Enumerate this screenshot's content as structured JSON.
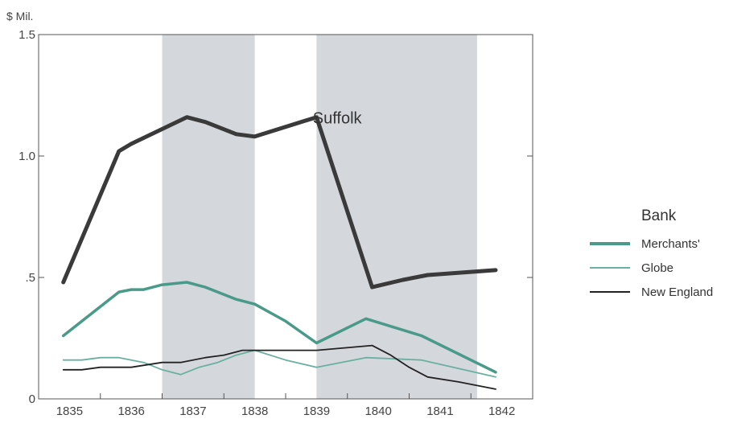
{
  "chart_data": {
    "type": "line",
    "title": "",
    "unit_label": "$ Mil.",
    "ylabel": "",
    "xlabel": "",
    "ylim": [
      0,
      1.5
    ],
    "xlim": [
      1835,
      1843
    ],
    "y_ticks": [
      {
        "value": 0,
        "label": "0"
      },
      {
        "value": 0.5,
        "label": ".5"
      },
      {
        "value": 1.0,
        "label": "1.0"
      },
      {
        "value": 1.5,
        "label": "1.5"
      }
    ],
    "x_ticks": [
      {
        "value": 1835,
        "label": "1835"
      },
      {
        "value": 1836,
        "label": "1836"
      },
      {
        "value": 1837,
        "label": "1837"
      },
      {
        "value": 1838,
        "label": "1838"
      },
      {
        "value": 1839,
        "label": "1839"
      },
      {
        "value": 1840,
        "label": "1840"
      },
      {
        "value": 1841,
        "label": "1841"
      },
      {
        "value": 1842,
        "label": "1842"
      }
    ],
    "shaded_periods": [
      [
        1837.0,
        1838.5
      ],
      [
        1839.5,
        1842.1
      ]
    ],
    "grid": false,
    "legend": {
      "title": "Bank",
      "placement": "right"
    },
    "annotations": [
      {
        "text": "Suffolk",
        "x": 1840.0,
        "y": 1.16
      }
    ],
    "series": [
      {
        "name": "Suffolk",
        "color": "#3a3a3a",
        "weight": "heavy",
        "points": [
          [
            1835.4,
            0.48
          ],
          [
            1836.3,
            1.02
          ],
          [
            1836.5,
            1.05
          ],
          [
            1837.4,
            1.16
          ],
          [
            1837.7,
            1.14
          ],
          [
            1838.2,
            1.09
          ],
          [
            1838.5,
            1.08
          ],
          [
            1839.5,
            1.16
          ],
          [
            1840.4,
            0.46
          ],
          [
            1840.9,
            0.49
          ],
          [
            1841.3,
            0.51
          ],
          [
            1842.4,
            0.53
          ]
        ]
      },
      {
        "name": "Merchants'",
        "color": "#4a9a8a",
        "weight": "medium",
        "points": [
          [
            1835.4,
            0.26
          ],
          [
            1836.0,
            0.38
          ],
          [
            1836.3,
            0.44
          ],
          [
            1836.5,
            0.45
          ],
          [
            1836.7,
            0.45
          ],
          [
            1837.0,
            0.47
          ],
          [
            1837.4,
            0.48
          ],
          [
            1837.7,
            0.46
          ],
          [
            1838.2,
            0.41
          ],
          [
            1838.5,
            0.39
          ],
          [
            1839.0,
            0.32
          ],
          [
            1839.5,
            0.23
          ],
          [
            1840.3,
            0.33
          ],
          [
            1841.2,
            0.26
          ],
          [
            1842.4,
            0.11
          ]
        ]
      },
      {
        "name": "Globe",
        "color": "#6ab0a0",
        "weight": "light",
        "points": [
          [
            1835.4,
            0.16
          ],
          [
            1835.7,
            0.16
          ],
          [
            1836.0,
            0.17
          ],
          [
            1836.3,
            0.17
          ],
          [
            1836.7,
            0.15
          ],
          [
            1837.0,
            0.12
          ],
          [
            1837.3,
            0.1
          ],
          [
            1837.6,
            0.13
          ],
          [
            1837.9,
            0.15
          ],
          [
            1838.2,
            0.18
          ],
          [
            1838.5,
            0.2
          ],
          [
            1839.0,
            0.16
          ],
          [
            1839.5,
            0.13
          ],
          [
            1840.3,
            0.17
          ],
          [
            1841.2,
            0.16
          ],
          [
            1842.4,
            0.09
          ]
        ]
      },
      {
        "name": "New England",
        "color": "#222222",
        "weight": "light",
        "points": [
          [
            1835.4,
            0.12
          ],
          [
            1835.7,
            0.12
          ],
          [
            1836.0,
            0.13
          ],
          [
            1836.5,
            0.13
          ],
          [
            1837.0,
            0.15
          ],
          [
            1837.3,
            0.15
          ],
          [
            1837.7,
            0.17
          ],
          [
            1838.0,
            0.18
          ],
          [
            1838.3,
            0.2
          ],
          [
            1838.6,
            0.2
          ],
          [
            1839.5,
            0.2
          ],
          [
            1840.4,
            0.22
          ],
          [
            1840.7,
            0.18
          ],
          [
            1841.0,
            0.13
          ],
          [
            1841.3,
            0.09
          ],
          [
            1841.8,
            0.07
          ],
          [
            1842.4,
            0.04
          ]
        ]
      }
    ]
  }
}
